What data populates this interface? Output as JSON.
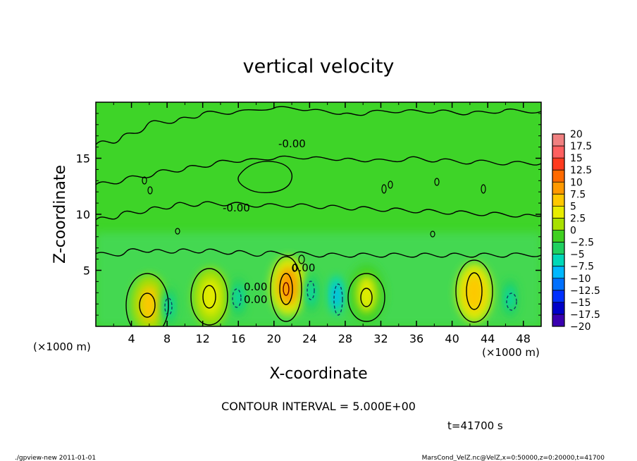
{
  "chart_data": {
    "type": "heatmap",
    "title": "vertical velocity",
    "xlabel": "X-coordinate",
    "ylabel": "Z-coordinate",
    "x_unit_left": "(×1000 m)",
    "x_unit_right": "(×1000 m)",
    "xlim": [
      0,
      50
    ],
    "ylim": [
      0,
      20
    ],
    "x_ticks": [
      "4",
      "8",
      "12",
      "16",
      "20",
      "24",
      "28",
      "32",
      "36",
      "40",
      "44",
      "48"
    ],
    "y_ticks": [
      "5",
      "10",
      "15"
    ],
    "colorbar": {
      "levels": [
        "20",
        "17.5",
        "15",
        "12.5",
        "10",
        "7.5",
        "5",
        "2.5",
        "0",
        "−2.5",
        "−5",
        "−7.5",
        "−10",
        "−12.5",
        "−15",
        "−17.5",
        "−20"
      ],
      "colors": [
        "#f08080",
        "#ff6060",
        "#ff3b1f",
        "#ff6a00",
        "#ff9900",
        "#ffc800",
        "#e8ec00",
        "#a8e000",
        "#40d020",
        "#20d060",
        "#00d8b8",
        "#00b8ff",
        "#0070ff",
        "#0030ff",
        "#0000c8",
        "#3a00b0",
        "#6a0ac0"
      ]
    },
    "contour_values": [
      "-0.00",
      "-0.00",
      "0.00",
      "0.00",
      "0.00"
    ],
    "updrafts": [
      {
        "x": 6,
        "z": 2.0,
        "w": 7
      },
      {
        "x": 12.9,
        "z": 2.6,
        "w": 6
      },
      {
        "x": 21.6,
        "z": 3.6,
        "w": 10
      },
      {
        "x": 30.4,
        "z": 2.9,
        "w": 5
      },
      {
        "x": 42.5,
        "z": 3.0,
        "w": 8
      }
    ],
    "downdrafts": [
      {
        "x": 8.2,
        "z": 1.8,
        "w": -5
      },
      {
        "x": 16,
        "z": 2.6,
        "w": -5
      },
      {
        "x": 24.2,
        "z": 3.0,
        "w": -5
      },
      {
        "x": 27,
        "z": 2.8,
        "w": -7
      },
      {
        "x": 46.5,
        "z": 2.5,
        "w": -6
      }
    ]
  },
  "footer": {
    "contour_interval": "CONTOUR INTERVAL = 5.000E+00",
    "time": "t=41700 s",
    "program": "./gpview-new  2011-01-01",
    "source": "MarsCond_VelZ.nc@VelZ,x=0:50000,z=0:20000,t=41700"
  }
}
